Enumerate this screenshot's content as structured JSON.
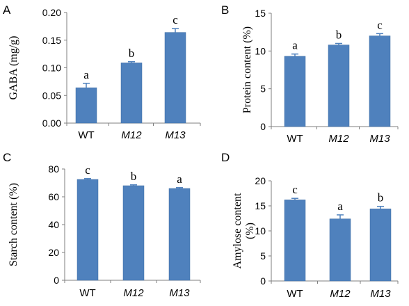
{
  "chart_data": [
    {
      "type": "bar",
      "panel": "A",
      "categories": [
        "WT",
        "M12",
        "M13"
      ],
      "values": [
        0.064,
        0.109,
        0.164
      ],
      "errors": [
        0.008,
        0.002,
        0.007
      ],
      "significance": [
        "a",
        "b",
        "c"
      ],
      "ylabel": "GABA (mg/g)",
      "ylim": [
        0,
        0.2
      ],
      "yticks": [
        "0.00",
        "0.05",
        "0.10",
        "0.15",
        "0.20"
      ],
      "bar_color": "#4f81bd"
    },
    {
      "type": "bar",
      "panel": "B",
      "categories": [
        "WT",
        "M12",
        "M13"
      ],
      "values": [
        9.3,
        10.8,
        12.0
      ],
      "errors": [
        0.3,
        0.2,
        0.3
      ],
      "significance": [
        "a",
        "b",
        "c"
      ],
      "ylabel": "Protein content (%)",
      "ylim": [
        0,
        15
      ],
      "yticks": [
        "0",
        "5",
        "10",
        "15"
      ],
      "bar_color": "#4f81bd"
    },
    {
      "type": "bar",
      "panel": "C",
      "categories": [
        "WT",
        "M12",
        "M13"
      ],
      "values": [
        72.5,
        68.0,
        66.0
      ],
      "errors": [
        0.6,
        0.6,
        0.6
      ],
      "significance": [
        "c",
        "b",
        "a"
      ],
      "ylabel": "Starch content (%)",
      "ylim": [
        0,
        80
      ],
      "yticks": [
        "0",
        "20",
        "40",
        "60",
        "80"
      ],
      "bar_color": "#4f81bd"
    },
    {
      "type": "bar",
      "panel": "D",
      "categories": [
        "WT",
        "M12",
        "M13"
      ],
      "values": [
        16.2,
        12.4,
        14.4
      ],
      "errors": [
        0.3,
        0.8,
        0.5
      ],
      "significance": [
        "c",
        "a",
        "b"
      ],
      "ylabel": "Amylose content (%)",
      "ylim": [
        0,
        20
      ],
      "yticks": [
        "0",
        "5",
        "10",
        "15",
        "20"
      ],
      "bar_color": "#4f81bd"
    }
  ]
}
